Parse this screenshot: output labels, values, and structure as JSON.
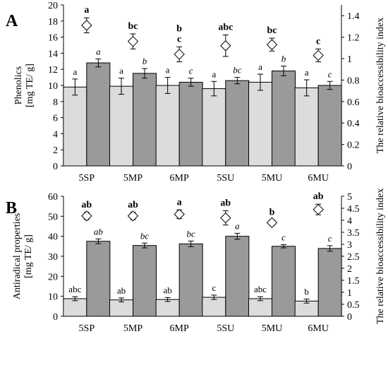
{
  "chart_data": [
    {
      "type": "bar",
      "panel_label": "A",
      "categories": [
        "5SP",
        "5MP",
        "6MP",
        "5SU",
        "5MU",
        "6MU"
      ],
      "ylabel_lines": [
        "Phenolics",
        "[mg TE/ g]"
      ],
      "y2label": "The relative bioaccessibility index",
      "ylim": [
        0,
        20
      ],
      "yticks": [
        "0",
        "2",
        "4",
        "6",
        "8",
        "10",
        "12",
        "14",
        "16",
        "18",
        "20"
      ],
      "y2lim": [
        0,
        1.5
      ],
      "y2ticks": [
        "0",
        "0.2",
        "0.4",
        "0.6",
        "0.8",
        "1",
        "1.2",
        "1.4"
      ],
      "series": [
        {
          "color": "#dcdcdc",
          "values": [
            9.8,
            9.9,
            10.0,
            9.6,
            10.4,
            9.7
          ],
          "errors": [
            1.0,
            1.0,
            1.0,
            0.9,
            1.0,
            1.0
          ],
          "letters": [
            "a",
            "a",
            "a",
            "a",
            "a",
            "a"
          ],
          "italic": false
        },
        {
          "color": "#9a9a9a",
          "values": [
            12.8,
            11.5,
            10.4,
            10.6,
            11.8,
            10.0
          ],
          "errors": [
            0.5,
            0.6,
            0.5,
            0.4,
            0.6,
            0.5
          ],
          "letters": [
            "a",
            "b",
            "c",
            "bc",
            "b",
            "c"
          ],
          "italic": true
        }
      ],
      "index": {
        "values": [
          1.31,
          1.16,
          1.04,
          1.12,
          1.13,
          1.03
        ],
        "errors": [
          0.07,
          0.07,
          0.07,
          0.1,
          0.06,
          0.06
        ],
        "letters": [
          "a",
          "bc",
          "c",
          "abc",
          "bc",
          "c"
        ],
        "extra_letters": [
          "",
          "",
          "b",
          "",
          "",
          ""
        ]
      }
    },
    {
      "type": "bar",
      "panel_label": "B",
      "categories": [
        "5SP",
        "5MP",
        "6MP",
        "5SU",
        "5MU",
        "6MU"
      ],
      "ylabel_lines": [
        "Antiradical properties",
        "[mg TE/ g]"
      ],
      "y2label": "The relative bioaccessibility index",
      "ylim": [
        0,
        60
      ],
      "yticks": [
        "0",
        "10",
        "20",
        "30",
        "40",
        "50",
        "60"
      ],
      "y2lim": [
        0,
        5
      ],
      "y2ticks": [
        "0",
        "0.5",
        "1",
        "1.5",
        "2",
        "2.5",
        "3",
        "3.5",
        "4",
        "4.5",
        "5"
      ],
      "series": [
        {
          "color": "#dcdcdc",
          "values": [
            8.8,
            8.2,
            8.4,
            9.5,
            8.8,
            7.6
          ],
          "errors": [
            1.0,
            1.0,
            1.0,
            1.1,
            1.0,
            1.0
          ],
          "letters": [
            "abc",
            "ab",
            "ab",
            "c",
            "abc",
            "b"
          ],
          "italic": false
        },
        {
          "color": "#9a9a9a",
          "values": [
            37.5,
            35.4,
            36.2,
            40.0,
            35.0,
            33.9
          ],
          "errors": [
            1.2,
            1.2,
            1.4,
            1.5,
            0.8,
            1.4
          ],
          "letters": [
            "ab",
            "bc",
            "bc",
            "a",
            "c",
            "c"
          ],
          "italic": true
        }
      ],
      "index": {
        "values": [
          4.18,
          4.18,
          4.25,
          4.1,
          3.9,
          4.45
        ],
        "errors": [
          0.15,
          0.15,
          0.18,
          0.3,
          0.12,
          0.22
        ],
        "letters": [
          "ab",
          "ab",
          "a",
          "ab",
          "b",
          "ab"
        ],
        "extra_letters": [
          "",
          "",
          "",
          "",
          "",
          ""
        ]
      }
    }
  ]
}
